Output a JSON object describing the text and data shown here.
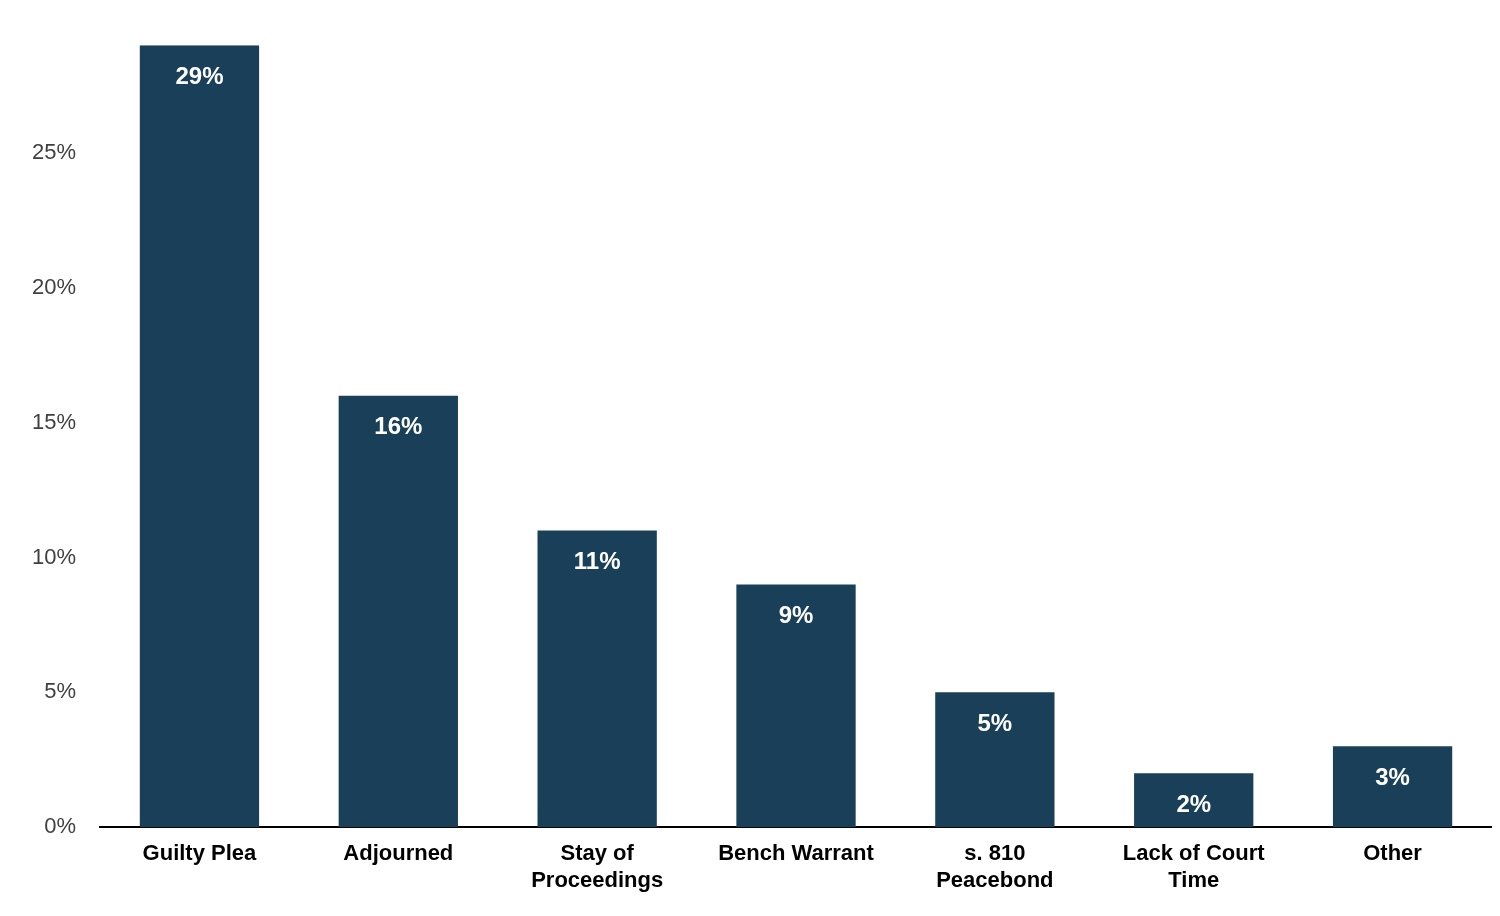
{
  "chart_data": {
    "type": "bar",
    "categories": [
      "Guilty Plea",
      "Adjourned",
      "Stay of Proceedings",
      "Bench Warrant",
      "s. 810 Peacebond",
      "Lack of Court Time",
      "Other"
    ],
    "values": [
      29,
      16,
      11,
      9,
      5,
      2,
      3
    ],
    "value_labels": [
      "29%",
      "16%",
      "11%",
      "9%",
      "5%",
      "2%",
      "3%"
    ],
    "color": "#1a4059",
    "ylim": [
      0,
      29
    ],
    "yticks": [
      {
        "value": 0,
        "label": "0%"
      },
      {
        "value": 5,
        "label": "5%"
      },
      {
        "value": 10,
        "label": "10%"
      },
      {
        "value": 15,
        "label": "15%"
      },
      {
        "value": 20,
        "label": "20%"
      },
      {
        "value": 25,
        "label": "25%"
      }
    ],
    "grid": false,
    "legend": false
  }
}
